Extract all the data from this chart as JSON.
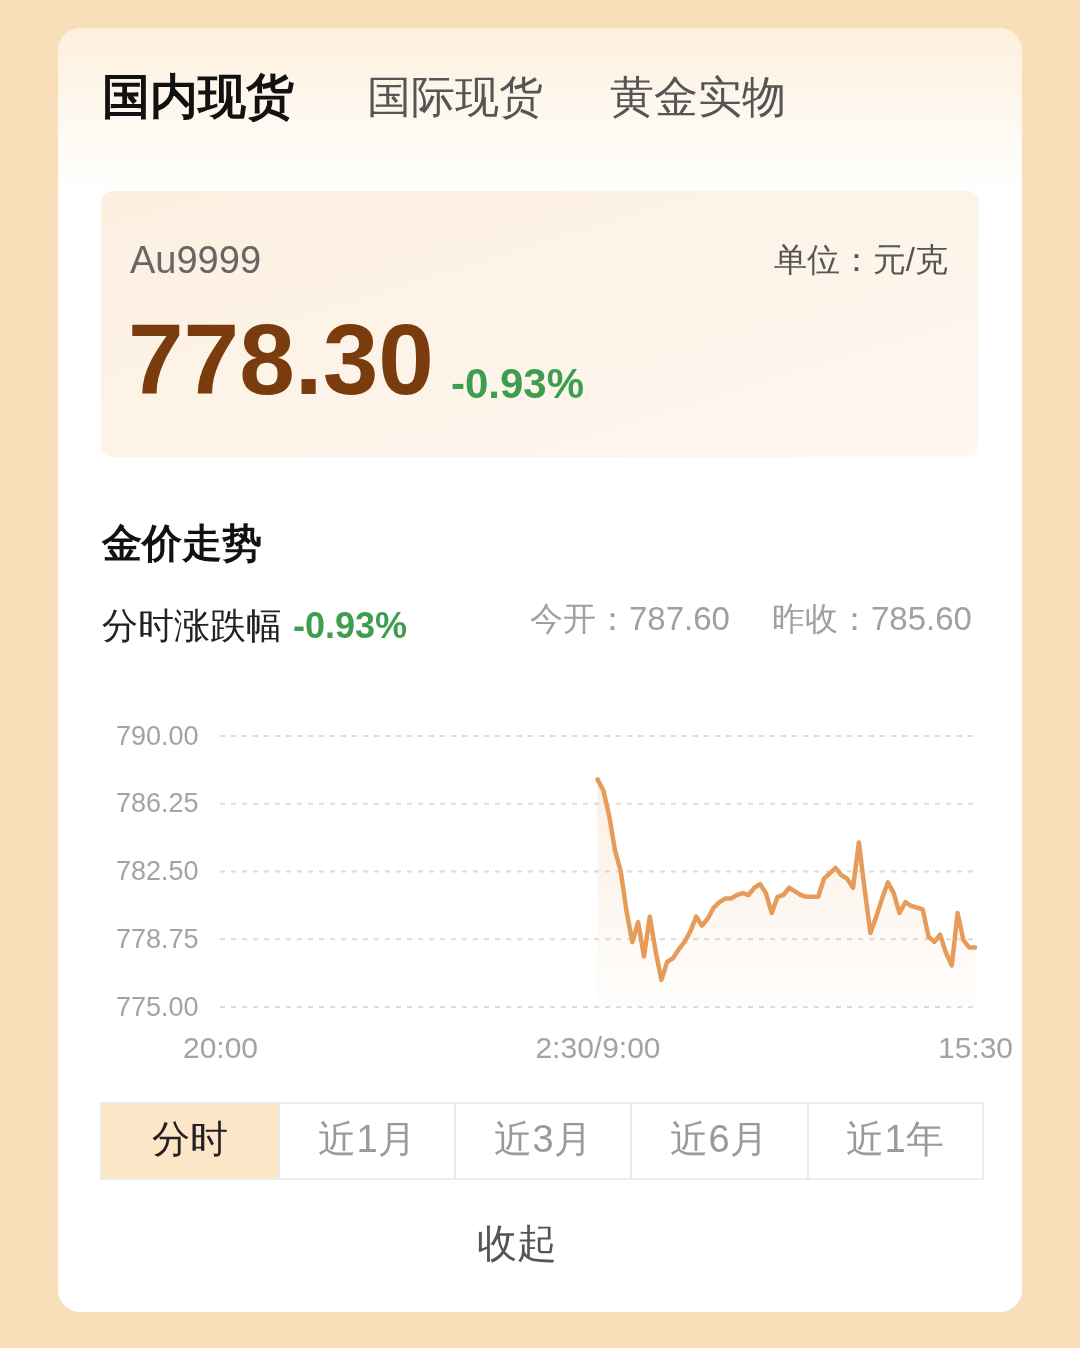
{
  "chart_data": {
    "type": "area",
    "title": "金价走势",
    "annotations": [
      "国内现货",
      "国际现货",
      "黄金实物",
      "Au9999",
      "单位：元/克",
      "778.30",
      "-0.93%",
      "分时涨跌幅",
      "-0.93%",
      "今开：787.60",
      "昨收：785.60",
      "分时",
      "近1月",
      "近3月",
      "近6月",
      "近1年",
      "收起"
    ],
    "categories": [
      "20:00",
      null,
      null,
      null,
      null,
      null,
      null,
      null,
      null,
      null,
      null,
      null,
      null,
      null,
      null,
      null,
      null,
      null,
      null,
      null,
      null,
      null,
      null,
      null,
      null,
      null,
      null,
      null,
      null,
      null,
      null,
      null,
      null,
      null,
      null,
      null,
      null,
      null,
      null,
      null,
      null,
      null,
      null,
      null,
      null,
      null,
      null,
      null,
      null,
      null,
      null,
      null,
      null,
      null,
      null,
      null,
      null,
      null,
      null,
      null,
      null,
      null,
      null,
      null,
      null,
      "2:30/9:00",
      null,
      null,
      null,
      null,
      null,
      null,
      null,
      null,
      null,
      null,
      null,
      null,
      null,
      null,
      null,
      null,
      null,
      null,
      null,
      null,
      null,
      null,
      null,
      null,
      null,
      null,
      null,
      null,
      null,
      null,
      null,
      null,
      null,
      null,
      null,
      null,
      null,
      null,
      null,
      null,
      null,
      null,
      null,
      null,
      null,
      null,
      null,
      null,
      null,
      null,
      null,
      null,
      null,
      null,
      null,
      null,
      null,
      null,
      null,
      null,
      null,
      null,
      null,
      null,
      "15:30"
    ],
    "series": [
      {
        "color": "#e69b5a",
        "values": [
          null,
          null,
          null,
          null,
          null,
          null,
          null,
          null,
          null,
          null,
          null,
          null,
          null,
          null,
          null,
          null,
          null,
          null,
          null,
          null,
          null,
          null,
          null,
          null,
          null,
          null,
          null,
          null,
          null,
          null,
          null,
          null,
          null,
          null,
          null,
          null,
          null,
          null,
          null,
          null,
          null,
          null,
          null,
          null,
          null,
          null,
          null,
          null,
          null,
          null,
          null,
          null,
          null,
          null,
          null,
          null,
          null,
          null,
          null,
          null,
          null,
          null,
          null,
          null,
          null,
          787.6,
          787.0,
          785.6,
          783.7,
          782.5,
          780.3,
          778.6,
          779.7,
          777.8,
          780.0,
          778.1,
          776.5,
          777.5,
          777.7,
          778.2,
          778.6,
          779.2,
          780.0,
          779.5,
          779.9,
          780.5,
          780.8,
          781.0,
          781.0,
          781.2,
          781.3,
          781.2,
          781.6,
          781.8,
          781.3,
          780.2,
          781.1,
          781.2,
          781.6,
          781.4,
          781.2,
          781.1,
          781.1,
          781.1,
          782.1,
          782.4,
          782.7,
          782.3,
          782.1,
          781.6,
          784.1,
          781.5,
          779.1,
          780.0,
          781.0,
          781.9,
          781.3,
          780.2,
          780.8,
          780.6,
          780.5,
          780.4,
          778.9,
          778.6,
          779.0,
          778.0,
          777.3,
          780.2,
          778.7,
          778.3,
          778.3
        ]
      }
    ],
    "ylim": [
      775,
      790
    ],
    "yticks": [
      {
        "value": 775,
        "label": "775.00"
      },
      778.75,
      {
        "value": 782.5,
        "label": "782.50"
      },
      786.25,
      {
        "value": 790,
        "label": "790.00"
      }
    ],
    "grid": "y"
  }
}
